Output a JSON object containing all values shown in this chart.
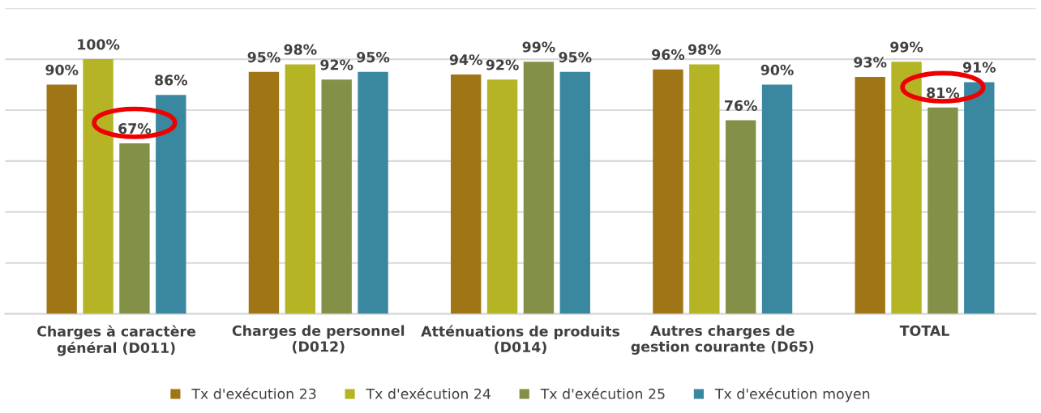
{
  "chart_data": {
    "type": "bar",
    "categories": [
      "Charges à caractère\ngénéral (D011)",
      "Charges de personnel\n(D012)",
      "Atténuations de produits\n(D014)",
      "Autres charges de\ngestion courante (D65)",
      "TOTAL"
    ],
    "series": [
      {
        "name": "Tx d'exécution 23",
        "color": "#a07516",
        "values": [
          90,
          95,
          94,
          96,
          93
        ],
        "value_labels": [
          "90%",
          "95%",
          "94%",
          "96%",
          "93%"
        ]
      },
      {
        "name": "Tx d'exécution 24",
        "color": "#b5b424",
        "values": [
          100,
          98,
          92,
          98,
          99
        ],
        "value_labels": [
          "100%",
          "98%",
          "92%",
          "98%",
          "99%"
        ]
      },
      {
        "name": "Tx d'exécution 25",
        "color": "#839048",
        "values": [
          67,
          92,
          99,
          76,
          81
        ],
        "value_labels": [
          "67%",
          "92%",
          "99%",
          "76%",
          "81%"
        ]
      },
      {
        "name": "Tx d'exécution moyen",
        "color": "#3a87a0",
        "values": [
          86,
          95,
          95,
          90,
          91
        ],
        "value_labels": [
          "86%",
          "95%",
          "95%",
          "90%",
          "91%"
        ]
      }
    ],
    "ylim": [
      0,
      120
    ],
    "yticks": [
      {
        "value": 0,
        "label": null
      },
      {
        "value": 20,
        "label": null
      },
      {
        "value": 40,
        "label": null
      },
      {
        "value": 60,
        "label": null
      },
      {
        "value": 80,
        "label": null
      },
      {
        "value": 100,
        "label": null
      },
      {
        "value": 120,
        "label": null
      }
    ],
    "grid": "y",
    "legend": "bottom",
    "tick_labels": "x"
  }
}
